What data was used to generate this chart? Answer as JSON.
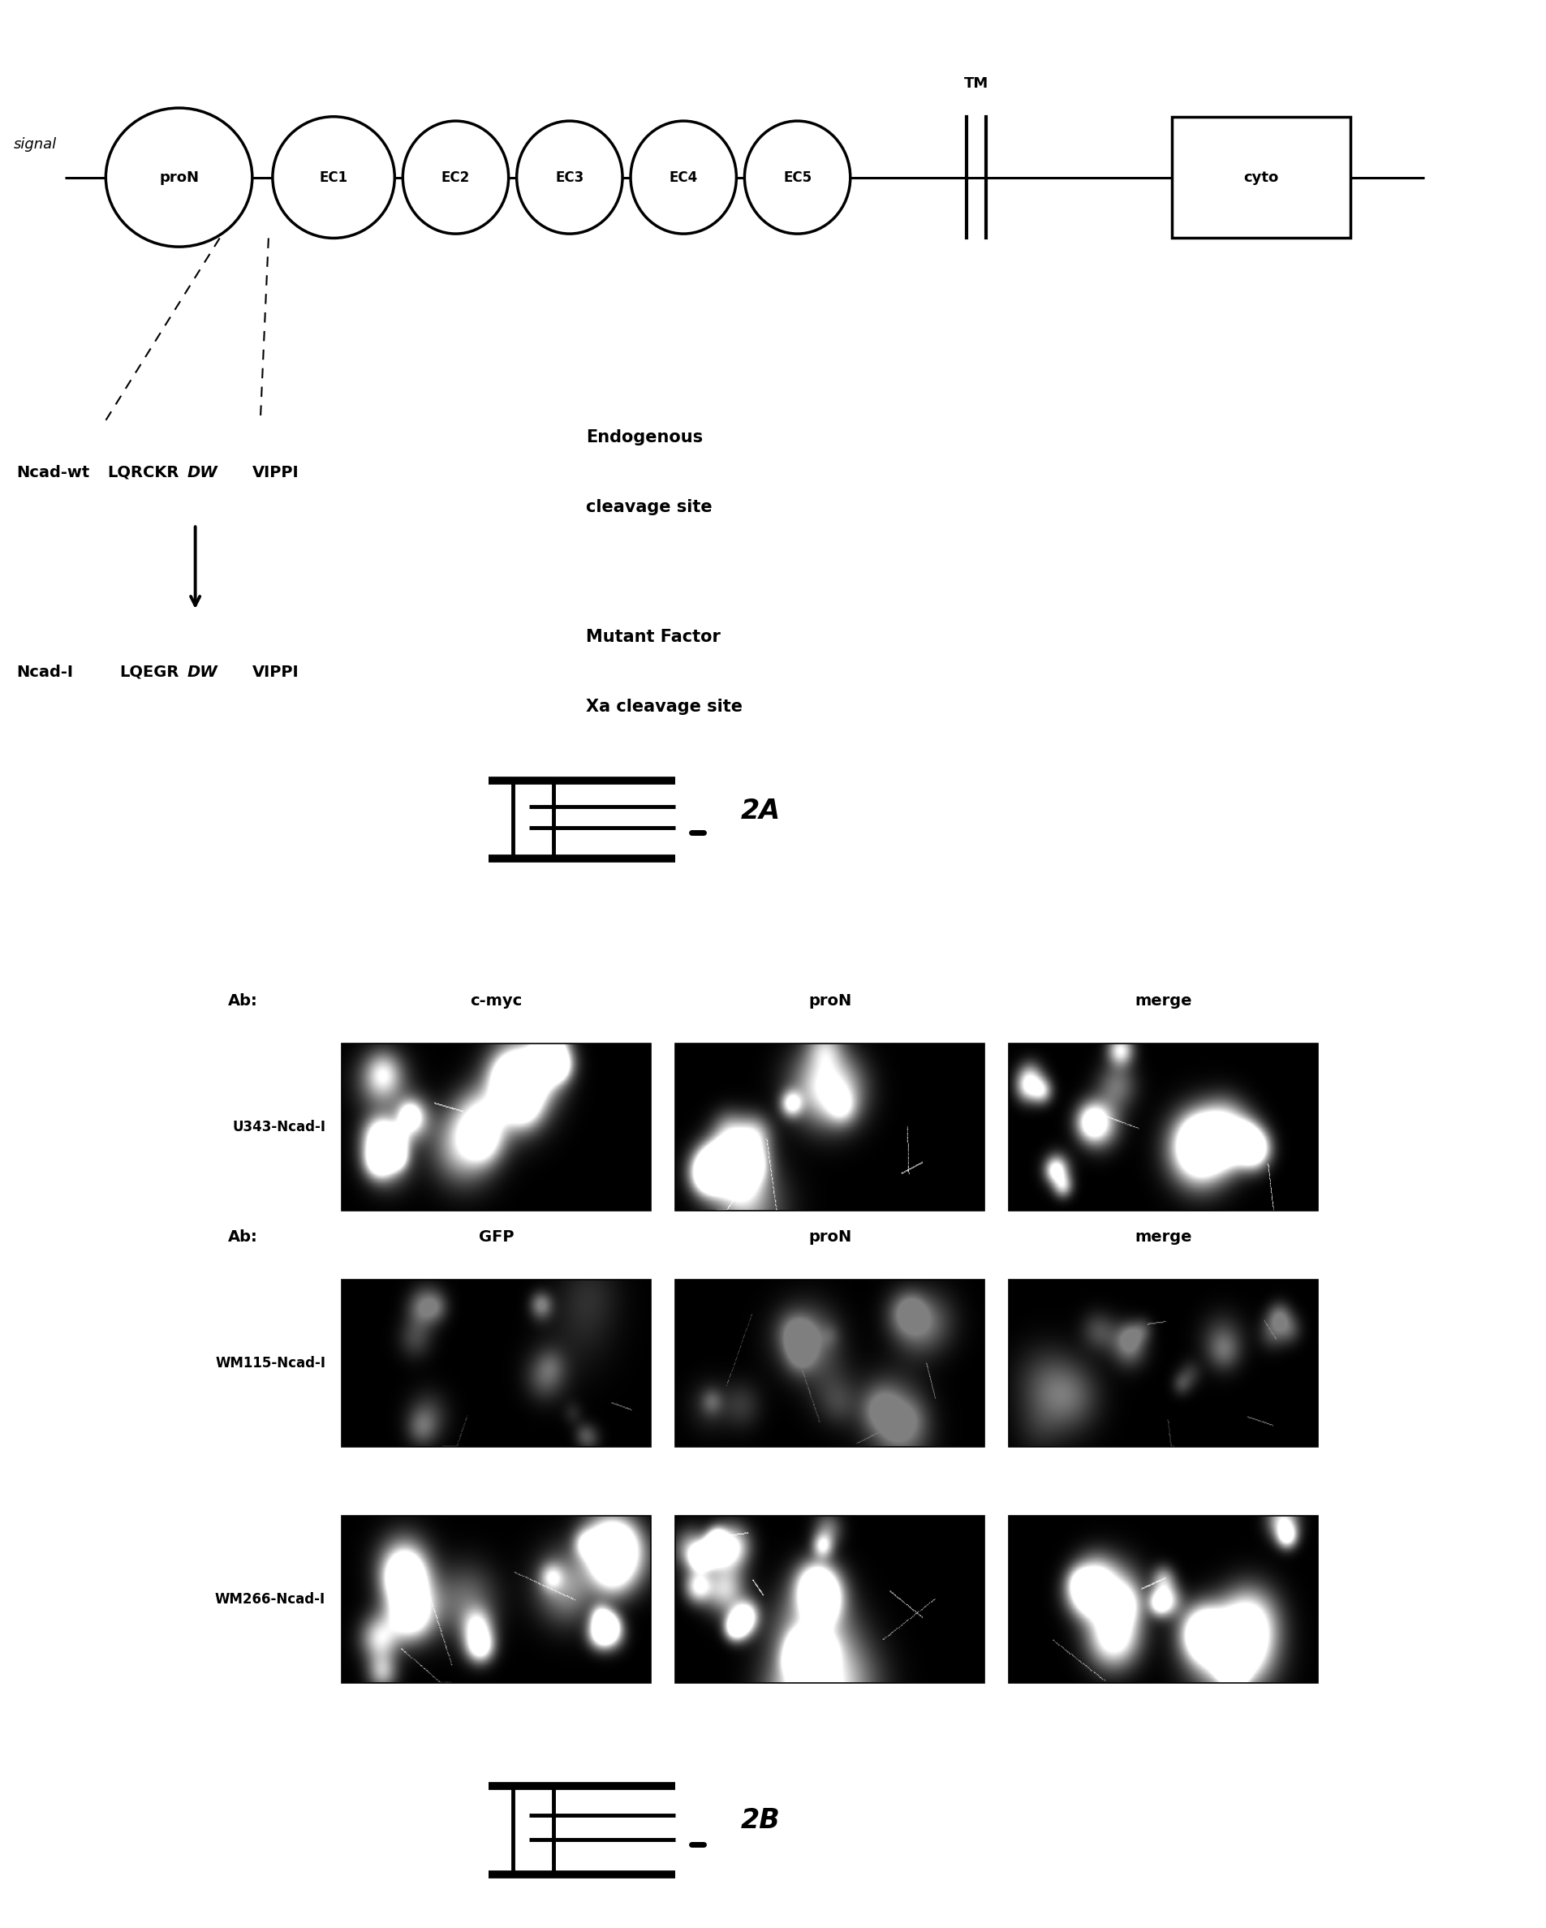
{
  "bg_color": "#ffffff",
  "fig_width": 19.05,
  "fig_height": 23.76,
  "panel_A": {
    "signal_label": "signal",
    "domains": [
      "proN",
      "EC1",
      "EC2",
      "EC3",
      "EC4",
      "EC5"
    ],
    "tm_label": "TM",
    "cyto_label": "cyto",
    "ncad_wt_label": "Ncad-wt",
    "ncad_wt_left": "LQRCKR",
    "ncad_wt_dw": "DW",
    "ncad_wt_right": "VIPPI",
    "ncad_wt_desc1": "Endogenous",
    "ncad_wt_desc2": "cleavage site",
    "ncad_I_label": "Ncad-I",
    "ncad_I_left": "LQEGR",
    "ncad_I_dw": "DW",
    "ncad_I_right": "VIPPI",
    "ncad_I_desc1": "Mutant Factor",
    "ncad_I_desc2": "Xa cleavage site",
    "fig_label": "2A"
  },
  "panel_B": {
    "row1_label": "U343-Ncad-I",
    "row1_ab_label": "Ab:",
    "row1_col1": "c-myc",
    "row1_col2": "proN",
    "row1_col3": "merge",
    "row2_label": "WM115-Ncad-I",
    "row2_ab_label": "Ab:",
    "row2_col1": "GFP",
    "row2_col2": "proN",
    "row2_col3": "merge",
    "row3_label": "WM266-Ncad-I",
    "fig_label": "2B"
  }
}
